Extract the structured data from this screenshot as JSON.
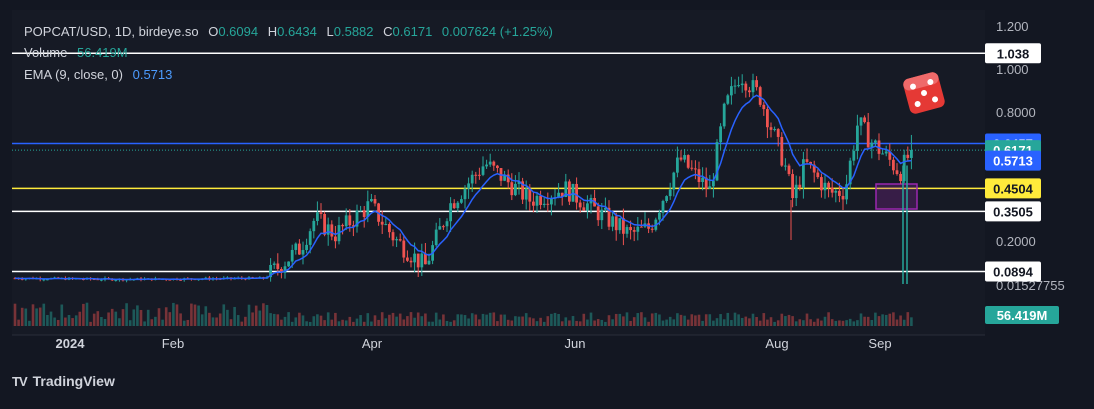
{
  "header": {
    "symbol": "POPCAT/USD, 1D, birdeye.so",
    "open_label": "O",
    "open": "0.6094",
    "high_label": "H",
    "high": "0.6434",
    "low_label": "L",
    "low": "0.5882",
    "close_label": "C",
    "close": "0.6171",
    "change": "0.007624 (+1.25%)",
    "volume_label": "Volume",
    "volume": "56.419M",
    "ema_label": "EMA (9, close, 0)",
    "ema": "0.5713"
  },
  "brand": {
    "name": "TradingView",
    "logo": "TV"
  },
  "colors": {
    "background": "#131722",
    "up": "#26a69a",
    "down": "#ef5350",
    "ema": "#2962ff",
    "yellow": "#ffeb3b",
    "purple": "#9c27b0"
  },
  "chart_data": {
    "type": "candlestick",
    "x_ticks": [
      "2024",
      "Feb",
      "Apr",
      "Jun",
      "Aug",
      "Sep"
    ],
    "y_ticks": [
      "1.200",
      "1.000",
      "0.8000",
      "0.2000",
      "0.01527755"
    ],
    "horizontal_lines": [
      {
        "label": "1.038",
        "value": 1.038,
        "color": "#ffffff"
      },
      {
        "label": "0.6457",
        "value": 0.6457,
        "color": "#2962ff"
      },
      {
        "label": "0.4504",
        "value": 0.4504,
        "color": "#ffeb3b"
      },
      {
        "label": "0.3505",
        "value": 0.3505,
        "color": "#ffffff"
      },
      {
        "label": "0.0894",
        "value": 0.0894,
        "color": "#ffffff"
      }
    ],
    "price_badges": [
      {
        "label": "0.6457",
        "value": 0.6457,
        "color": "#2962ff"
      },
      {
        "label": "0.6171",
        "value": 0.6171,
        "color": "#26a69a"
      },
      {
        "label": "0.5713",
        "value": 0.5713,
        "color": "#2962ff"
      },
      {
        "label": "0.4504",
        "value": 0.4504,
        "color": "#ffeb3b"
      },
      {
        "label": "0.3505",
        "value": 0.3505,
        "color": "#ffffff"
      },
      {
        "label": "0.0894",
        "value": 0.0894,
        "color": "#ffffff"
      }
    ],
    "volume_badge": "56.419M",
    "last_close": 0.6171,
    "ema_last": 0.5713,
    "grid": false,
    "ylim": [
      0.0,
      1.2
    ]
  }
}
